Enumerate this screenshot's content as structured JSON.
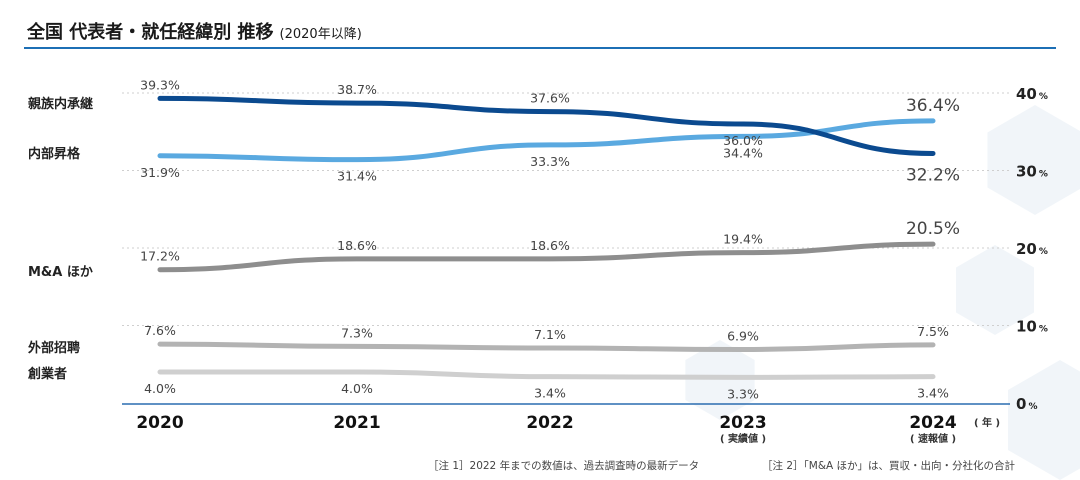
{
  "title": "全国 代表者・就任経緯別 推移",
  "subtitle": "(2020年以降)",
  "notes": [
    "［注 1］2022 年までの数値は、過去調査時の最新データ",
    "［注 2］「M&A ほか」は、買収・出向・分社化の合計"
  ],
  "x_sub_labels": {
    "2023": "( 実績値 )",
    "2024": "( 速報値 )"
  },
  "x_unit": "( 年 )",
  "y_unit": "%",
  "chart_data": {
    "type": "line",
    "x": [
      "2020",
      "2021",
      "2022",
      "2023",
      "2024"
    ],
    "ylim": [
      0,
      40
    ],
    "yticks": [
      "0",
      "10",
      "20",
      "30",
      "40"
    ],
    "grid": true,
    "series": [
      {
        "name": "親族内承継",
        "values": [
          39.3,
          38.7,
          37.6,
          36.0,
          32.2
        ],
        "labels": [
          "39.3%",
          "38.7%",
          "37.6%",
          "36.0%",
          "32.2%"
        ],
        "color": "#0b4a8f"
      },
      {
        "name": "内部昇格",
        "values": [
          31.9,
          31.4,
          33.3,
          34.4,
          36.4
        ],
        "labels": [
          "31.9%",
          "31.4%",
          "33.3%",
          "34.4%",
          "36.4%"
        ],
        "color": "#5aa9e0"
      },
      {
        "name": "M&A ほか",
        "values": [
          17.2,
          18.6,
          18.6,
          19.4,
          20.5
        ],
        "labels": [
          "17.2%",
          "18.6%",
          "18.6%",
          "19.4%",
          "20.5%"
        ],
        "color": "#8e8e8e"
      },
      {
        "name": "外部招聘",
        "values": [
          7.6,
          7.3,
          7.1,
          6.9,
          7.5
        ],
        "labels": [
          "7.6%",
          "7.3%",
          "7.1%",
          "6.9%",
          "7.5%"
        ],
        "color": "#b3b3b3"
      },
      {
        "name": "創業者",
        "values": [
          4.0,
          4.0,
          3.4,
          3.3,
          3.4
        ],
        "labels": [
          "4.0%",
          "4.0%",
          "3.4%",
          "3.3%",
          "3.4%"
        ],
        "color": "#cfcfcf"
      }
    ]
  }
}
